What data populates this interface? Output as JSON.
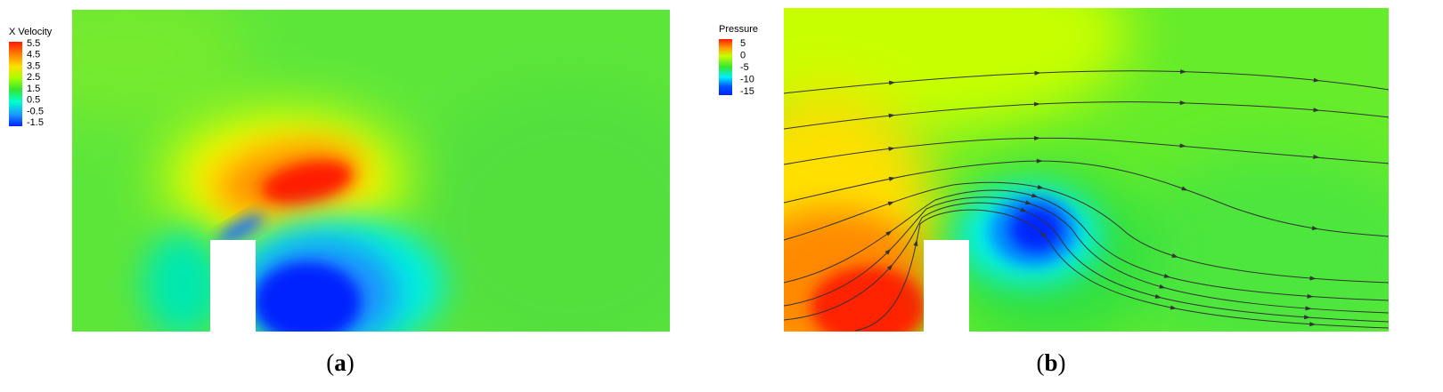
{
  "panels": [
    {
      "id": "a",
      "caption_open": "(",
      "caption_letter": "a",
      "caption_close": ")",
      "chart_data": {
        "type": "heatmap",
        "variable": "X Velocity",
        "colorbar": {
          "title": "X Velocity",
          "ticks": [
            "5.5",
            "4.5",
            "3.5",
            "2.5",
            "1.5",
            "0.5",
            "-0.5",
            "-1.5"
          ],
          "range": [
            -1.5,
            5.5
          ]
        },
        "colors": [
          "#ff1a00",
          "#ff7a00",
          "#ffe000",
          "#a6ff00",
          "#33e633",
          "#00ffd0",
          "#1a9cff",
          "#0022ff"
        ],
        "ambient_value": 2.5,
        "features": [
          {
            "name": "acceleration-lobe",
            "value": 5.5
          },
          {
            "name": "recirculation-wake",
            "value": -1.5
          },
          {
            "name": "windward-stagnation",
            "value": 0.5
          }
        ]
      }
    },
    {
      "id": "b",
      "caption_open": "(",
      "caption_letter": "b",
      "caption_close": ")",
      "chart_data": {
        "type": "heatmap",
        "variable": "Pressure",
        "colorbar": {
          "title": "Pressure",
          "ticks": [
            "5",
            "0",
            "-5",
            "-10",
            "-15"
          ],
          "range": [
            -15,
            5
          ]
        },
        "colors": [
          "#ff1a00",
          "#ff9a00",
          "#c8ff00",
          "#33e633",
          "#00f0ff",
          "#0050ff",
          "#0022ff"
        ],
        "ambient_value": -2,
        "features": [
          {
            "name": "windward-high-pressure",
            "value": 5
          },
          {
            "name": "roof-vortex-low-pressure",
            "value": -15
          }
        ],
        "streamlines": true
      }
    }
  ]
}
